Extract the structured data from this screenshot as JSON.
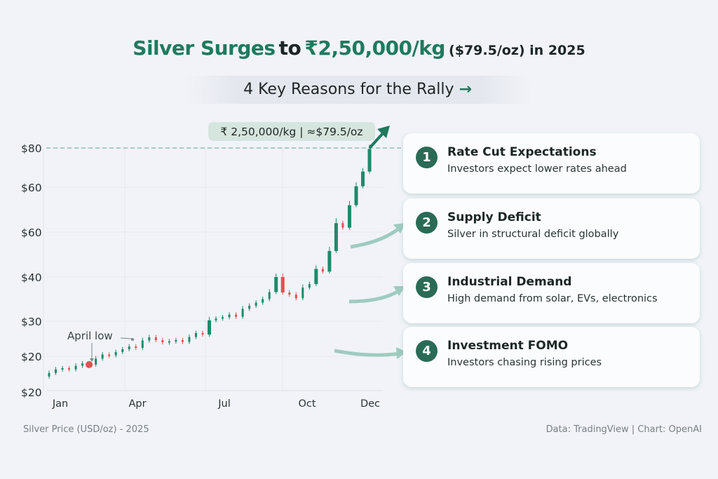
{
  "title": {
    "part1": "Silver Surges",
    "part2": "to",
    "part3": "₹2,50,000/kg",
    "part4": "($79.5/oz) in 2025"
  },
  "subtitle": {
    "text": "4 Key Reasons for the Rally",
    "arrow": "→"
  },
  "reasons": [
    {
      "number": "1",
      "title": "Rate Cut Expectations",
      "description": "Investors expect lower rates ahead"
    },
    {
      "number": "2",
      "title": "Supply Deficit",
      "description": "Silver in structural deficit globally"
    },
    {
      "number": "3",
      "title": "Industrial Demand",
      "description": "High demand from solar, EVs, electronics"
    },
    {
      "number": "4",
      "title": "Investment FOMO",
      "description": "Investors chasing rising prices"
    }
  ],
  "footer": {
    "left": "Silver Price (USD/oz) - 2025",
    "right": "Data: TradingView | Chart: OpenAI"
  },
  "colors": {
    "accent": "#1f7a5e",
    "up": "#1f8a6a",
    "down": "#e0524f",
    "card_number": "#2a6b56"
  },
  "chart_data": {
    "type": "candlestick",
    "title": "",
    "xlabel": "",
    "ylabel": "",
    "x_tick_labels": [
      "Jan",
      "Apr",
      "Jul",
      "Oct",
      "Dec"
    ],
    "y_tick_labels": [
      "$20",
      "$20",
      "$30",
      "$40",
      "$60",
      "$60",
      "$80"
    ],
    "grid": true,
    "reference_line": {
      "value": 79.5,
      "style": "dashed",
      "label": "₹ 2,50,000/kg | ≈$79.5/oz"
    },
    "annotation": {
      "label": "April low",
      "value": 19.3
    },
    "series": [
      {
        "closes": [
          18.6,
          18.9,
          19.0,
          18.9,
          19.2,
          19.4,
          19.3,
          19.8,
          20.5,
          20.3,
          21.2,
          22.0,
          22.8,
          22.4,
          24.5,
          25.4,
          24.6,
          24.0,
          24.3,
          24.6,
          24.1,
          25.5,
          26.6,
          26.2,
          30.2,
          30.6,
          30.9,
          31.5,
          31.0,
          32.8,
          33.5,
          34.2,
          35.0,
          36.6,
          40.0,
          36.5,
          36.0,
          35.2,
          37.6,
          38.4,
          41.8,
          41.2,
          45.8,
          52.0,
          51.0,
          56.0,
          60.5,
          68.0,
          79.5
        ]
      }
    ]
  }
}
